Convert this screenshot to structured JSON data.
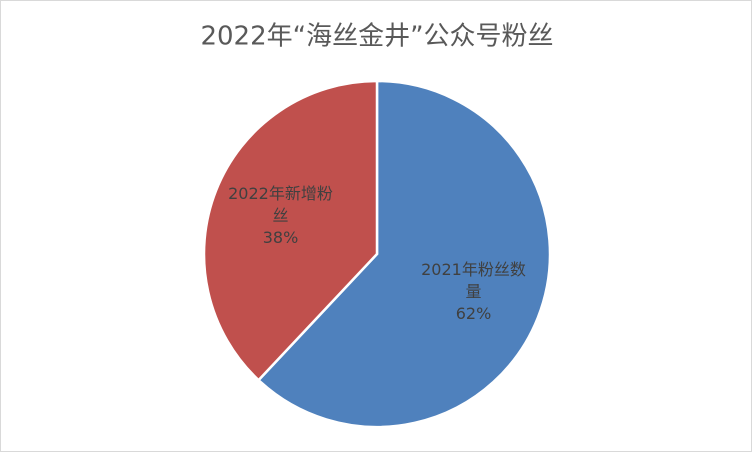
{
  "chart_data": {
    "type": "pie",
    "title": "2022年“海丝金井”公众号粉丝",
    "categories": [
      "2021年粉丝数量",
      "2022年新增粉丝"
    ],
    "values": [
      62,
      38
    ],
    "value_labels": [
      "62%",
      "38%"
    ],
    "colors": [
      "#4f81bd",
      "#c0504d"
    ]
  }
}
